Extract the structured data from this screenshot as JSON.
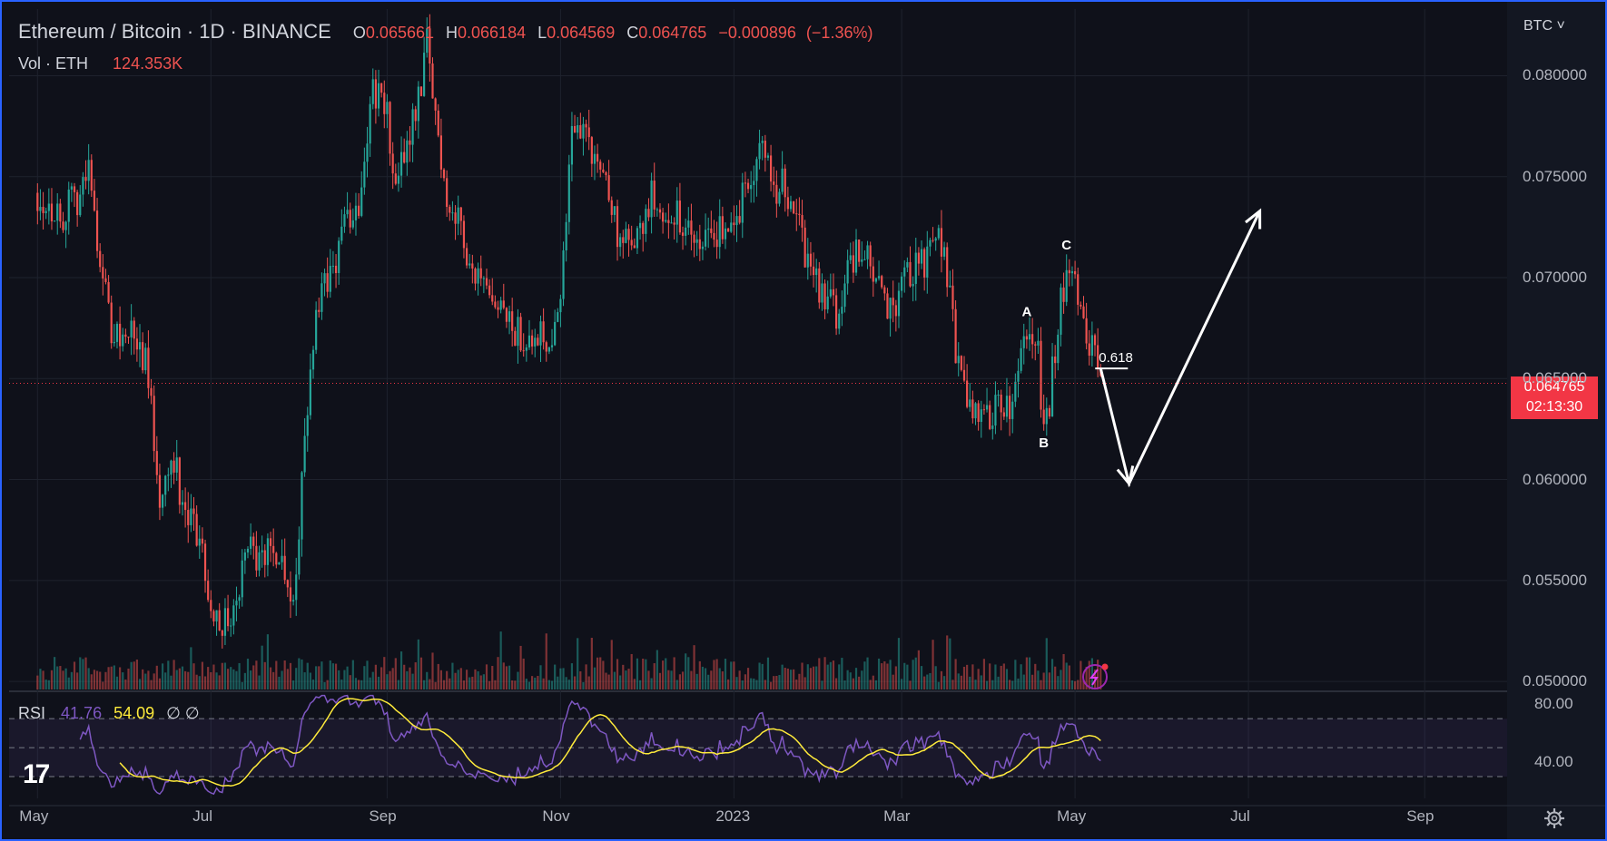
{
  "chart_data": {
    "type": "candlestick",
    "title": "Ethereum / Bitcoin · 1D · BINANCE",
    "symbol": "ETHBTC",
    "interval": "1D",
    "exchange": "BINANCE",
    "ohlc_header": {
      "O": "0.065661",
      "H": "0.066184",
      "L": "0.064569",
      "C": "0.064765",
      "change": "−0.000896",
      "change_pct": "(−1.36%)"
    },
    "volume": {
      "label": "Vol · ETH",
      "value": "124.353K"
    },
    "price_axis": {
      "currency": "BTC",
      "ticks": [
        "0.080000",
        "0.075000",
        "0.070000",
        "0.065000",
        "0.060000",
        "0.055000",
        "0.050000"
      ],
      "ylim": [
        0.0496,
        0.0833
      ]
    },
    "current_price": {
      "value": "0.064765",
      "countdown": "02:13:30"
    },
    "time_axis": [
      "May",
      "Jul",
      "Sep",
      "Nov",
      "2023",
      "Mar",
      "May",
      "Jul",
      "Sep"
    ],
    "price_path": [
      [
        "2022-05-01",
        0.0742
      ],
      [
        "2022-05-09",
        0.073
      ],
      [
        "2022-05-16",
        0.0741
      ],
      [
        "2022-05-19",
        0.0753
      ],
      [
        "2022-05-21",
        0.0732
      ],
      [
        "2022-05-27",
        0.0672
      ],
      [
        "2022-06-03",
        0.0672
      ],
      [
        "2022-06-08",
        0.066
      ],
      [
        "2022-06-13",
        0.0594
      ],
      [
        "2022-06-18",
        0.0612
      ],
      [
        "2022-06-22",
        0.058
      ],
      [
        "2022-06-27",
        0.0572
      ],
      [
        "2022-06-30",
        0.0545
      ],
      [
        "2022-07-05",
        0.0528
      ],
      [
        "2022-07-10",
        0.0536
      ],
      [
        "2022-07-14",
        0.0572
      ],
      [
        "2022-07-18",
        0.0557
      ],
      [
        "2022-07-22",
        0.0569
      ],
      [
        "2022-07-27",
        0.0558
      ],
      [
        "2022-07-30",
        0.054
      ],
      [
        "2022-08-02",
        0.0595
      ],
      [
        "2022-08-05",
        0.066
      ],
      [
        "2022-08-09",
        0.069
      ],
      [
        "2022-08-13",
        0.0705
      ],
      [
        "2022-08-17",
        0.0727
      ],
      [
        "2022-08-22",
        0.0738
      ],
      [
        "2022-08-27",
        0.0795
      ],
      [
        "2022-09-01",
        0.078
      ],
      [
        "2022-09-04",
        0.0742
      ],
      [
        "2022-09-08",
        0.0768
      ],
      [
        "2022-09-13",
        0.0797
      ],
      [
        "2022-09-15",
        0.0816
      ],
      [
        "2022-09-18",
        0.078
      ],
      [
        "2022-09-22",
        0.0739
      ],
      [
        "2022-09-27",
        0.0725
      ],
      [
        "2022-10-02",
        0.07
      ],
      [
        "2022-10-07",
        0.0685
      ],
      [
        "2022-10-13",
        0.0678
      ],
      [
        "2022-10-18",
        0.067
      ],
      [
        "2022-10-23",
        0.0676
      ],
      [
        "2022-10-28",
        0.0668
      ],
      [
        "2022-11-02",
        0.0705
      ],
      [
        "2022-11-05",
        0.0775
      ],
      [
        "2022-11-09",
        0.0776
      ],
      [
        "2022-11-13",
        0.0758
      ],
      [
        "2022-11-17",
        0.075
      ],
      [
        "2022-11-22",
        0.0715
      ],
      [
        "2022-11-28",
        0.0718
      ],
      [
        "2022-12-03",
        0.074
      ],
      [
        "2022-12-08",
        0.0735
      ],
      [
        "2022-12-13",
        0.0728
      ],
      [
        "2022-12-18",
        0.0716
      ],
      [
        "2022-12-22",
        0.072
      ],
      [
        "2022-12-28",
        0.0725
      ],
      [
        "2023-01-03",
        0.0735
      ],
      [
        "2023-01-08",
        0.0752
      ],
      [
        "2023-01-12",
        0.0767
      ],
      [
        "2023-01-15",
        0.0745
      ],
      [
        "2023-01-18",
        0.0745
      ],
      [
        "2023-01-23",
        0.0732
      ],
      [
        "2023-01-28",
        0.07
      ],
      [
        "2023-02-02",
        0.0692
      ],
      [
        "2023-02-06",
        0.0682
      ],
      [
        "2023-02-11",
        0.071
      ],
      [
        "2023-02-16",
        0.0712
      ],
      [
        "2023-02-20",
        0.0695
      ],
      [
        "2023-02-25",
        0.0683
      ],
      [
        "2023-03-02",
        0.0697
      ],
      [
        "2023-03-06",
        0.0705
      ],
      [
        "2023-03-10",
        0.0707
      ],
      [
        "2023-03-14",
        0.072
      ],
      [
        "2023-03-17",
        0.07
      ],
      [
        "2023-03-21",
        0.0655
      ],
      [
        "2023-03-24",
        0.0633
      ],
      [
        "2023-03-28",
        0.063
      ],
      [
        "2023-04-01",
        0.063
      ],
      [
        "2023-04-05",
        0.0642
      ],
      [
        "2023-04-08",
        0.063
      ],
      [
        "2023-04-11",
        0.0648
      ],
      [
        "2023-04-14",
        0.0677
      ],
      [
        "2023-04-18",
        0.066
      ],
      [
        "2023-04-20",
        0.0625
      ],
      [
        "2023-04-22",
        0.064
      ],
      [
        "2023-04-25",
        0.068
      ],
      [
        "2023-04-28",
        0.0705
      ],
      [
        "2023-05-01",
        0.0695
      ],
      [
        "2023-05-04",
        0.0675
      ],
      [
        "2023-05-07",
        0.0666
      ],
      [
        "2023-05-10",
        0.065
      ]
    ],
    "annotations": {
      "wave_labels": [
        {
          "text": "A",
          "date": "2023-04-14",
          "price": 0.0681
        },
        {
          "text": "B",
          "date": "2023-04-20",
          "price": 0.0616
        },
        {
          "text": "C",
          "date": "2023-04-28",
          "price": 0.0714
        }
      ],
      "fib_label": "0.618",
      "fib_level": 0.0655,
      "projected_path": [
        [
          "2023-05-10",
          0.0655
        ],
        [
          "2023-05-20",
          0.0598
        ],
        [
          "2023-07-05",
          0.0733
        ]
      ]
    },
    "rsi": {
      "label": "RSI",
      "value": "41.76",
      "ma_value": "54.09",
      "extra": "∅ ∅",
      "ticks": [
        "80.00",
        "40.00"
      ],
      "upper_band": 70,
      "lower_band": 30,
      "ylim": [
        15,
        87
      ]
    }
  },
  "colors": {
    "background": "#0f111a",
    "up": "#26a69a",
    "down": "#ef5350",
    "rsi_line": "#7e57c2",
    "rsi_ma": "#ffeb3b",
    "frame": "#2962ff",
    "price_tag": "#f23645"
  },
  "icons": {
    "logo": "tradingview-logo-icon",
    "settings": "gear-icon",
    "alert": "lightning-icon"
  }
}
